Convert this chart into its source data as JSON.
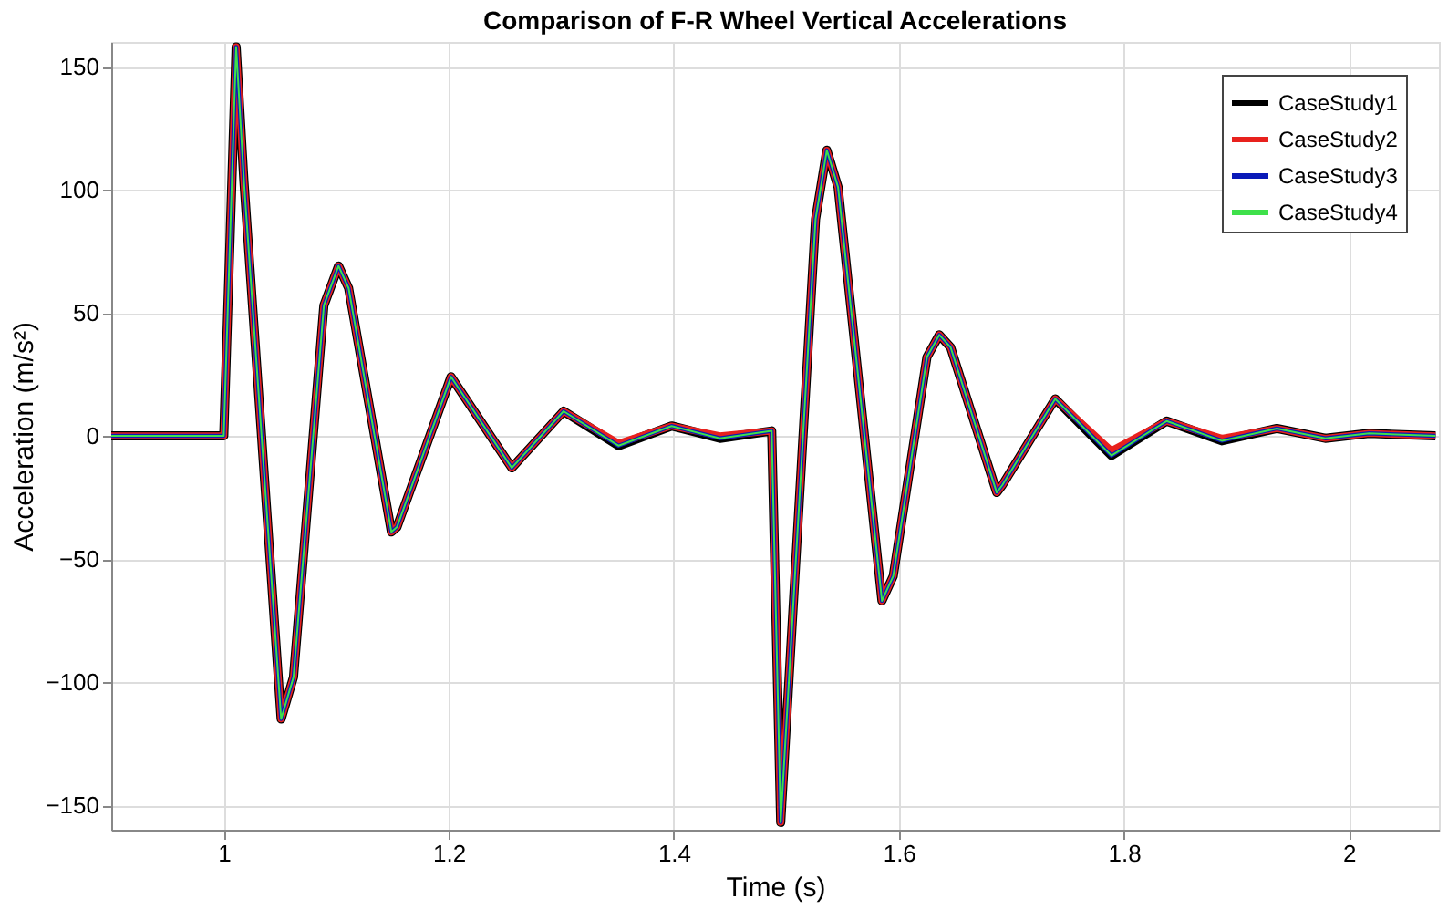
{
  "chart_data": {
    "type": "line",
    "title": "Comparison of F-R Wheel Vertical Accelerations",
    "xlabel": "Time (s)",
    "ylabel": "Acceleration (m/s²)",
    "x": [
      0.9,
      1.0,
      1.011,
      1.018,
      1.051,
      1.062,
      1.089,
      1.102,
      1.111,
      1.149,
      1.154,
      1.202,
      1.256,
      1.302,
      1.351,
      1.398,
      1.441,
      1.487,
      1.495,
      1.526,
      1.536,
      1.546,
      1.585,
      1.595,
      1.625,
      1.636,
      1.646,
      1.687,
      1.692,
      1.739,
      1.789,
      1.838,
      1.887,
      1.936,
      1.979,
      2.018,
      2.077
    ],
    "series": [
      {
        "name": "CaseStudy1",
        "color": "#000000",
        "values": [
          0,
          0,
          158,
          103,
          -115,
          -98,
          53,
          69,
          60,
          -39,
          -37,
          24,
          -13,
          10,
          -4,
          4,
          -1,
          2,
          -157,
          88,
          116,
          101,
          -67,
          -57,
          32,
          41,
          36,
          -23,
          -20,
          15,
          -8,
          6,
          -2,
          3,
          -1,
          1,
          0
        ]
      },
      {
        "name": "CaseStudy2",
        "color": "#e8211d",
        "values": [
          0,
          0,
          158,
          103,
          -115,
          -98,
          53,
          69,
          60,
          -39,
          -37,
          24,
          -13,
          10,
          -3,
          4,
          0,
          2,
          -157,
          88,
          116,
          101,
          -67,
          -57,
          32,
          41,
          36,
          -23,
          -20,
          15,
          -6,
          6,
          -1,
          3,
          -1,
          1,
          0
        ]
      },
      {
        "name": "CaseStudy3",
        "color": "#0a1ab8",
        "values": [
          0,
          0,
          158,
          103,
          -115,
          -98,
          53,
          69,
          60,
          -39,
          -37,
          24,
          -13,
          10,
          -4,
          4,
          -1,
          2,
          -157,
          88,
          116,
          101,
          -67,
          -57,
          32,
          41,
          36,
          -23,
          -20,
          15,
          -8,
          6,
          -2,
          3,
          -1,
          1,
          0
        ]
      },
      {
        "name": "CaseStudy4",
        "color": "#3ee04a",
        "values": [
          0,
          0,
          158,
          103,
          -115,
          -98,
          53,
          69,
          60,
          -39,
          -37,
          24,
          -13,
          10,
          -4,
          4,
          -1,
          2,
          -157,
          88,
          116,
          101,
          -67,
          -57,
          32,
          41,
          36,
          -23,
          -20,
          15,
          -8,
          6,
          -2,
          3,
          -1,
          1,
          0
        ]
      }
    ],
    "xlim": [
      0.9,
      2.08
    ],
    "ylim": [
      -160,
      160
    ],
    "xticks": [
      1,
      1.2,
      1.4,
      1.6,
      1.8,
      2
    ],
    "yticks": [
      -150,
      -100,
      -50,
      0,
      50,
      100,
      150
    ],
    "grid": true,
    "legend": "top right",
    "line_style": "solid"
  }
}
